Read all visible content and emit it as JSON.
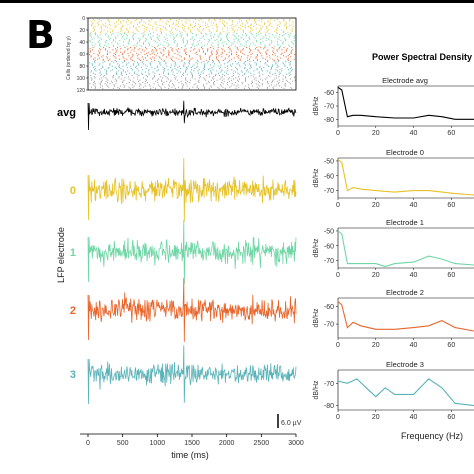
{
  "figure": {
    "panel_letter": "B",
    "raster": {
      "ylabel": "Cells (ordered by y)",
      "ytick_labels": [
        "0",
        "20",
        "40",
        "60",
        "80",
        "100",
        "120"
      ],
      "colors": [
        "#e6c229",
        "#6fd6a6",
        "#e8662c",
        "#5ab3b8",
        "#9a9a9a"
      ]
    },
    "lfp": {
      "ylabel": "LFP electrode",
      "scalebar_label": "6.0 µV",
      "xlabel": "time (ms)",
      "xtick_labels": [
        "0",
        "500",
        "1000",
        "1500",
        "2000",
        "2500",
        "3000"
      ],
      "traces": [
        {
          "label": "avg",
          "color": "#000000"
        },
        {
          "label": "0",
          "color": "#e6c229"
        },
        {
          "label": "1",
          "color": "#6fd6a6"
        },
        {
          "label": "2",
          "color": "#e8662c"
        },
        {
          "label": "3",
          "color": "#5ab3b8"
        }
      ]
    },
    "psd": {
      "suptitle": "Power Spectral Density",
      "xlabel": "Frequency (Hz)",
      "ylabel": "dB/Hz",
      "xtick_labels": [
        "0",
        "20",
        "40",
        "60"
      ]
    }
  },
  "chart_data": [
    {
      "type": "scatter",
      "subtype": "spike-raster",
      "xlim": [
        0,
        3000
      ],
      "ylim": [
        0,
        120
      ],
      "ylabel": "Cells (ordered by y)"
    },
    {
      "type": "line",
      "subtype": "lfp-traces",
      "xlim": [
        0,
        3000
      ],
      "xlabel": "time (ms)",
      "ylabel": "LFP electrode",
      "scalebar_uV": 6.0,
      "series": [
        {
          "name": "avg"
        },
        {
          "name": "0"
        },
        {
          "name": "1"
        },
        {
          "name": "2"
        },
        {
          "name": "3"
        }
      ]
    },
    {
      "type": "line",
      "subtype": "power-spectral-density",
      "title": "Power Spectral Density",
      "xlabel": "Frequency (Hz)",
      "ylabel": "dB/Hz",
      "xlim": [
        0,
        72
      ],
      "panels": [
        {
          "title": "Electrode avg",
          "color": "#000000",
          "ylim": [
            -85,
            -55
          ],
          "yticks": [
            -60,
            -70,
            -80
          ],
          "x": [
            0,
            2,
            5,
            8,
            12,
            20,
            30,
            40,
            48,
            55,
            62,
            72
          ],
          "y": [
            -56,
            -58,
            -78,
            -77,
            -77,
            -78,
            -79,
            -79,
            -77,
            -78,
            -80,
            -80
          ]
        },
        {
          "title": "Electrode 0",
          "color": "#e6c229",
          "ylim": [
            -75,
            -48
          ],
          "yticks": [
            -50,
            -60,
            -70
          ],
          "x": [
            0,
            2,
            5,
            8,
            12,
            20,
            30,
            40,
            48,
            55,
            62,
            72
          ],
          "y": [
            -49,
            -51,
            -70,
            -68,
            -69,
            -70,
            -71,
            -70,
            -70,
            -71,
            -72,
            -73
          ]
        },
        {
          "title": "Electrode 1",
          "color": "#6fd6a6",
          "ylim": [
            -75,
            -48
          ],
          "yticks": [
            -50,
            -60,
            -70
          ],
          "x": [
            0,
            2,
            5,
            8,
            12,
            20,
            25,
            30,
            40,
            48,
            55,
            62,
            72
          ],
          "y": [
            -50,
            -52,
            -72,
            -72,
            -72,
            -72,
            -74,
            -72,
            -71,
            -67,
            -69,
            -72,
            -73
          ]
        },
        {
          "title": "Electrode 2",
          "color": "#e8662c",
          "ylim": [
            -78,
            -55
          ],
          "yticks": [
            -60,
            -70
          ],
          "x": [
            0,
            2,
            5,
            8,
            12,
            20,
            30,
            40,
            48,
            55,
            62,
            72
          ],
          "y": [
            -57,
            -59,
            -72,
            -69,
            -71,
            -73,
            -73,
            -72,
            -71,
            -68,
            -72,
            -74
          ]
        },
        {
          "title": "Electrode 3",
          "color": "#5ab3b8",
          "ylim": [
            -82,
            -64
          ],
          "yticks": [
            -70,
            -80
          ],
          "x": [
            0,
            5,
            10,
            15,
            20,
            25,
            30,
            40,
            48,
            55,
            62,
            72
          ],
          "y": [
            -69,
            -70,
            -68,
            -72,
            -76,
            -72,
            -75,
            -75,
            -68,
            -72,
            -79,
            -80
          ]
        }
      ]
    }
  ]
}
